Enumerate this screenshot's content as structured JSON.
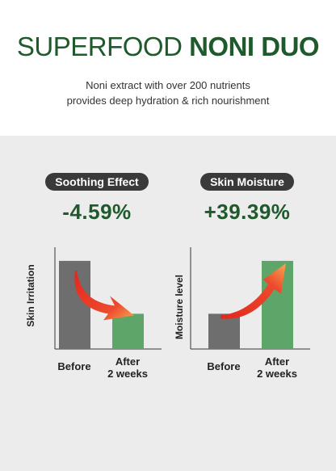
{
  "header": {
    "title_regular": "SUPERFOOD",
    "title_bold": "NONI DUO",
    "subtitle_line1": "Noni extract with over 200 nutrients",
    "subtitle_line2": "provides deep hydration & rich nourishment"
  },
  "colors": {
    "brand_green": "#1f5a2c",
    "before_bar": "#6e6e6e",
    "after_bar": "#5ea56a",
    "arrow_red": "#e8392b",
    "arrow_orange": "#f5a24a",
    "pill_bg": "#3a3a3a"
  },
  "chart_data": [
    {
      "type": "bar",
      "title": "Soothing Effect",
      "metric": "-4.59%",
      "ylabel": "Skin Irritation",
      "categories": [
        "Before",
        "After\n2 weeks"
      ],
      "category_lines": [
        [
          "Before"
        ],
        [
          "After",
          "2 weeks"
        ]
      ],
      "values": [
        1.0,
        0.4
      ],
      "ylim": [
        0,
        1.1
      ],
      "arrow": "down"
    },
    {
      "type": "bar",
      "title": "Skin Moisture",
      "metric": "+39.39%",
      "ylabel": "Moisture level",
      "categories": [
        "Before",
        "After\n2 weeks"
      ],
      "category_lines": [
        [
          "Before"
        ],
        [
          "After",
          "2 weeks"
        ]
      ],
      "values": [
        0.4,
        1.0
      ],
      "ylim": [
        0,
        1.1
      ],
      "arrow": "up"
    }
  ]
}
